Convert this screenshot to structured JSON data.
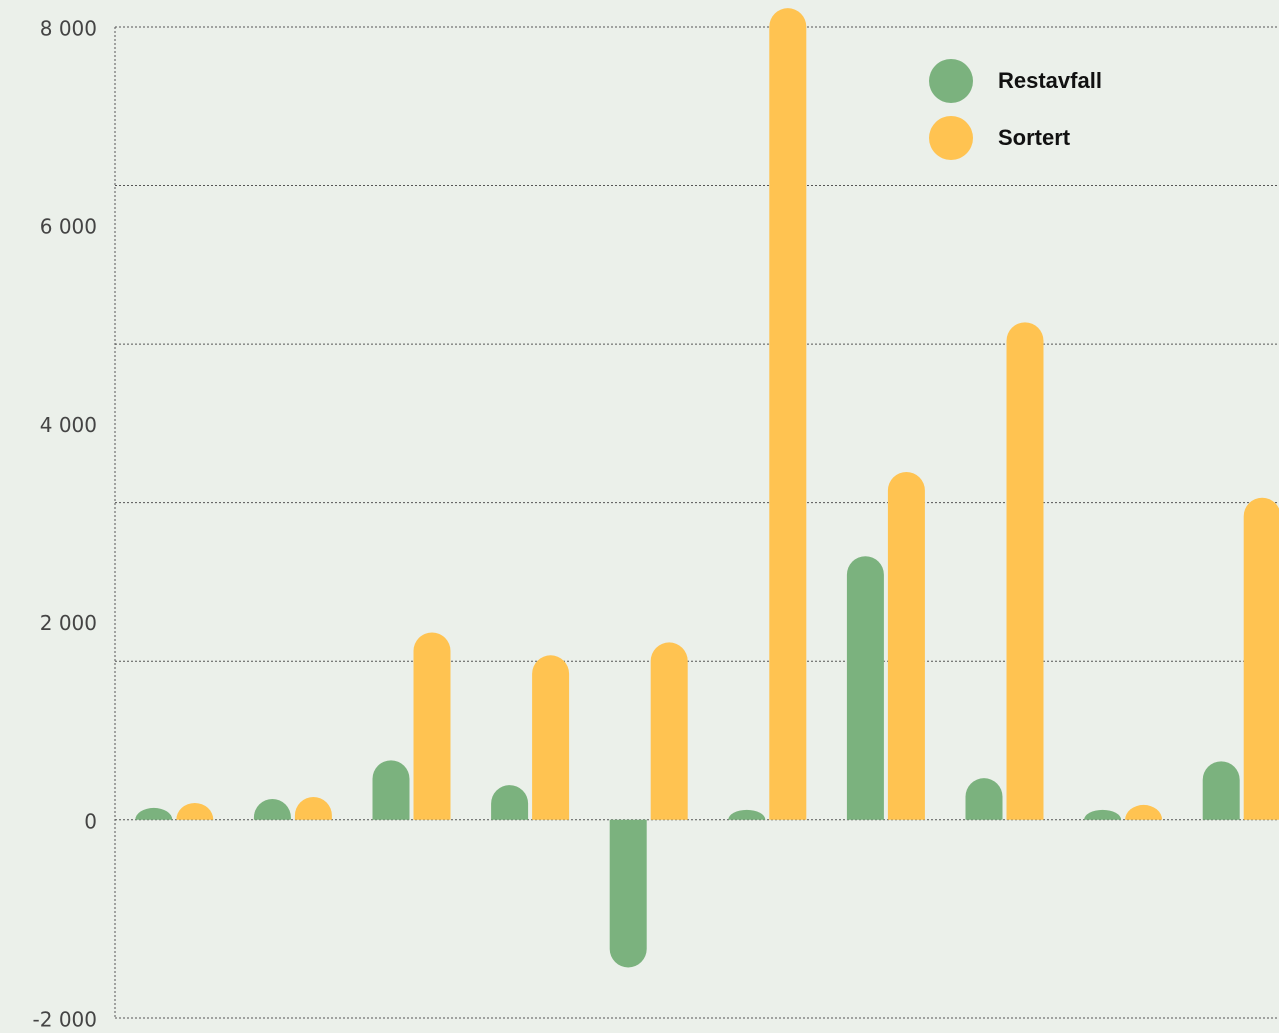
{
  "chart_data": {
    "type": "bar",
    "categories": [
      null,
      null,
      null,
      null,
      null,
      null,
      null,
      null,
      null,
      null
    ],
    "series": [
      {
        "name": "Restavfall",
        "color": "#7bb27e",
        "values": [
          120,
          210,
          600,
          350,
          -1490,
          100,
          2660,
          420,
          100,
          590
        ]
      },
      {
        "name": "Sortert",
        "color": "#ffc351",
        "values": [
          170,
          230,
          1890,
          1660,
          1790,
          8190,
          3510,
          5020,
          150,
          3250
        ]
      }
    ],
    "ylim": [
      -2000,
      8000
    ],
    "yticks": [
      {
        "value": -2000,
        "label": "-2 000"
      },
      0,
      {
        "value": 2000,
        "label": "2 000"
      },
      {
        "value": 4000,
        "label": "4 000"
      },
      {
        "value": 6000,
        "label": "6 000"
      },
      {
        "value": 8000,
        "label": "8 000"
      }
    ],
    "ygrid": [
      -2000,
      0,
      1600,
      3200,
      4800,
      6400,
      8000
    ],
    "grid": true,
    "legend": "top-right"
  }
}
